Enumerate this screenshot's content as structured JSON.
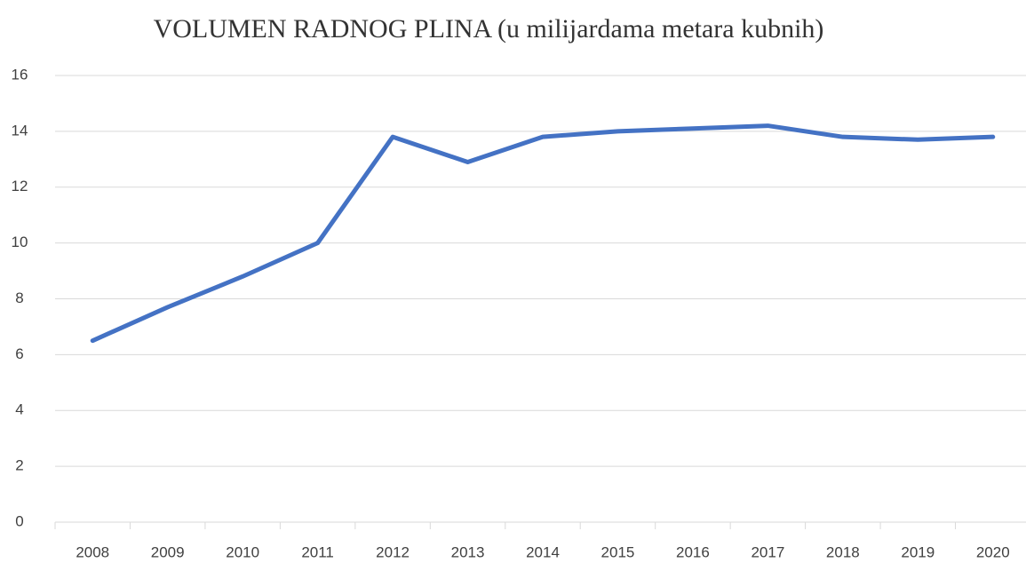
{
  "chart_data": {
    "type": "line",
    "title": "VOLUMEN RADNOG PLINA (u milijardama metara kubnih)",
    "categories": [
      "2008",
      "2009",
      "2010",
      "2011",
      "2012",
      "2013",
      "2014",
      "2015",
      "2016",
      "2017",
      "2018",
      "2019",
      "2020"
    ],
    "series": [
      {
        "color": "#4472c4",
        "values": [
          6.5,
          7.7,
          8.8,
          10.0,
          13.8,
          12.9,
          13.8,
          14.0,
          14.1,
          14.2,
          13.8,
          13.7,
          13.8
        ]
      }
    ],
    "ylim": [
      0,
      16
    ],
    "yticks": [
      0,
      2,
      4,
      6,
      8,
      10,
      12,
      14,
      16
    ],
    "grid": true
  }
}
